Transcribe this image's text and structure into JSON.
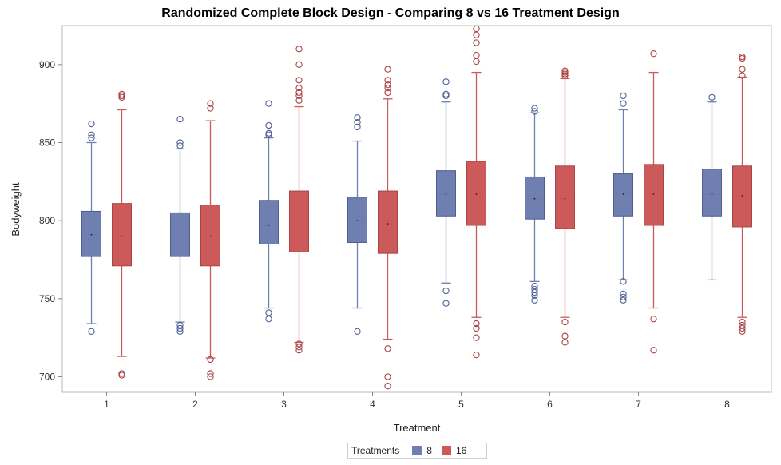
{
  "chart_data": {
    "type": "box",
    "title": "Randomized Complete Block Design - Comparing 8 vs 16 Treatment Design",
    "xlabel": "Treatment",
    "ylabel": "Bodyweight",
    "ylim": [
      690,
      925
    ],
    "yticks": [
      700,
      750,
      800,
      850,
      900
    ],
    "categories": [
      "1",
      "2",
      "3",
      "4",
      "5",
      "6",
      "7",
      "8"
    ],
    "legend": {
      "title": "Treatments",
      "position": "bottom-center"
    },
    "series": [
      {
        "name": "8",
        "color": "#6f7fb0",
        "boxes": [
          {
            "whisker_low": 734,
            "q1": 777,
            "median": 791,
            "mean": 791,
            "q3": 806,
            "whisker_high": 850,
            "outliers": [
              729,
              853,
              855,
              862
            ]
          },
          {
            "whisker_low": 735,
            "q1": 777,
            "median": 790,
            "mean": 790,
            "q3": 805,
            "whisker_high": 846,
            "outliers": [
              729,
              731,
              733,
              848,
              850,
              865
            ]
          },
          {
            "whisker_low": 744,
            "q1": 785,
            "median": 797,
            "mean": 797,
            "q3": 813,
            "whisker_high": 853,
            "outliers": [
              737,
              741,
              855,
              856,
              861,
              875
            ]
          },
          {
            "whisker_low": 744,
            "q1": 786,
            "median": 800,
            "mean": 800,
            "q3": 815,
            "whisker_high": 851,
            "outliers": [
              729,
              860,
              863,
              866
            ]
          },
          {
            "whisker_low": 760,
            "q1": 803,
            "median": 817,
            "mean": 817,
            "q3": 832,
            "whisker_high": 876,
            "outliers": [
              747,
              755,
              880,
              881,
              889
            ]
          },
          {
            "whisker_low": 761,
            "q1": 801,
            "median": 814,
            "mean": 814,
            "q3": 828,
            "whisker_high": 869,
            "outliers": [
              749,
              752,
              754,
              756,
              758,
              870,
              872
            ]
          },
          {
            "whisker_low": 762,
            "q1": 803,
            "median": 817,
            "mean": 817,
            "q3": 830,
            "whisker_high": 871,
            "outliers": [
              749,
              751,
              753,
              761,
              875,
              880
            ]
          },
          {
            "whisker_low": 762,
            "q1": 803,
            "median": 817,
            "mean": 817,
            "q3": 833,
            "whisker_high": 876,
            "outliers": [
              879
            ]
          }
        ]
      },
      {
        "name": "16",
        "color": "#cd5a5a",
        "boxes": [
          {
            "whisker_low": 713,
            "q1": 771,
            "median": 790,
            "mean": 790,
            "q3": 811,
            "whisker_high": 871,
            "outliers": [
              701,
              702,
              879,
              880,
              881
            ]
          },
          {
            "whisker_low": 712,
            "q1": 771,
            "median": 790,
            "mean": 790,
            "q3": 810,
            "whisker_high": 864,
            "outliers": [
              700,
              702,
              711,
              872,
              875
            ]
          },
          {
            "whisker_low": 722,
            "q1": 780,
            "median": 800,
            "mean": 800,
            "q3": 819,
            "whisker_high": 873,
            "outliers": [
              717,
              719,
              721,
              877,
              880,
              882,
              885,
              890,
              900,
              910
            ]
          },
          {
            "whisker_low": 724,
            "q1": 779,
            "median": 798,
            "mean": 798,
            "q3": 819,
            "whisker_high": 878,
            "outliers": [
              694,
              700,
              718,
              882,
              885,
              887,
              890,
              897
            ]
          },
          {
            "whisker_low": 738,
            "q1": 797,
            "median": 817,
            "mean": 817,
            "q3": 838,
            "whisker_high": 895,
            "outliers": [
              714,
              725,
              731,
              734,
              902,
              906,
              914,
              919,
              923
            ]
          },
          {
            "whisker_low": 738,
            "q1": 795,
            "median": 814,
            "mean": 814,
            "q3": 835,
            "whisker_high": 891,
            "outliers": [
              722,
              726,
              735,
              893,
              894,
              895,
              896
            ]
          },
          {
            "whisker_low": 744,
            "q1": 797,
            "median": 817,
            "mean": 817,
            "q3": 836,
            "whisker_high": 895,
            "outliers": [
              717,
              737,
              907
            ]
          },
          {
            "whisker_low": 738,
            "q1": 796,
            "median": 816,
            "mean": 816,
            "q3": 835,
            "whisker_high": 892,
            "outliers": [
              729,
              731,
              733,
              735,
              893,
              897,
              904,
              905
            ]
          }
        ]
      }
    ]
  }
}
